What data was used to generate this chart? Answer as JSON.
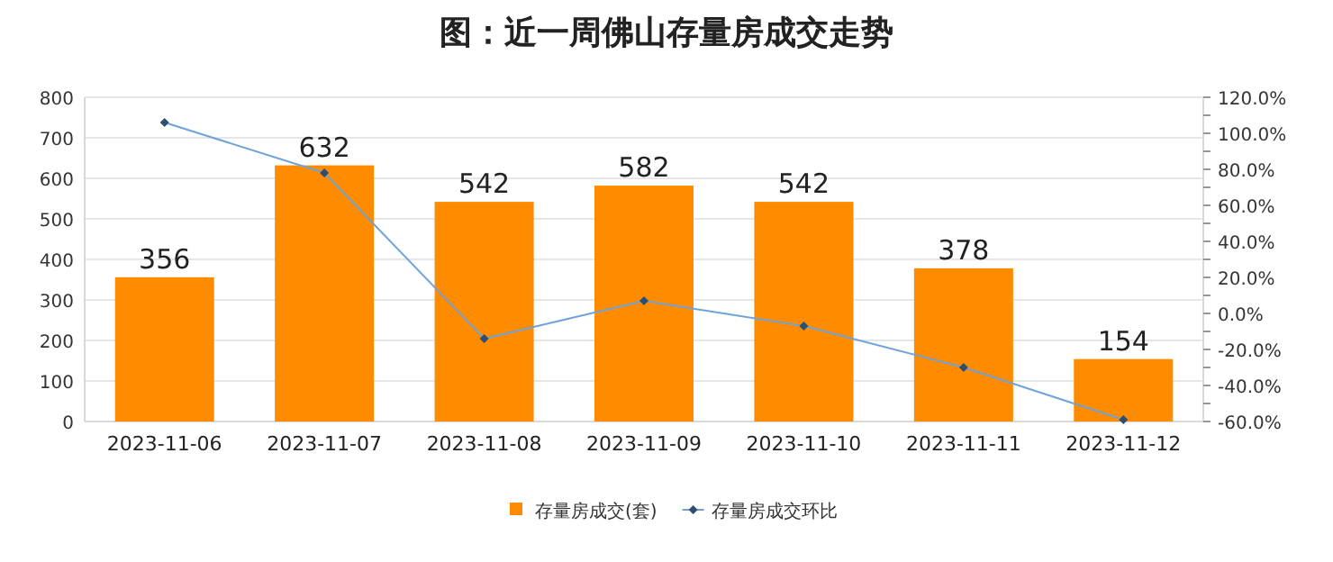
{
  "chart_data": {
    "type": "bar",
    "title": "图：近一周佛山存量房成交走势",
    "categories": [
      "2023-11-06",
      "2023-11-07",
      "2023-11-08",
      "2023-11-09",
      "2023-11-10",
      "2023-11-11",
      "2023-11-12"
    ],
    "series": [
      {
        "name": "存量房成交(套)",
        "color": "#ff8b00",
        "values": [
          356,
          632,
          542,
          582,
          542,
          378,
          154
        ],
        "value_labels": [
          "356",
          "632",
          "542",
          "582",
          "542",
          "378",
          "154"
        ]
      },
      {
        "name": "存量房成交环比",
        "type": "line",
        "axis": "y2",
        "color": "#6fa3d8",
        "marker": "diamond",
        "values": [
          106,
          78,
          -14,
          7,
          -7,
          -30,
          -59
        ]
      }
    ],
    "ylim": [
      0,
      800
    ],
    "yticks": [
      0,
      100,
      200,
      300,
      400,
      500,
      600,
      700,
      800
    ],
    "y2lim": [
      -60,
      120
    ],
    "y2ticks": [
      {
        "value": -60,
        "label": "-60.0%"
      },
      {
        "value": -50,
        "label": null
      },
      {
        "value": -40,
        "label": "-40.0%"
      },
      {
        "value": -30,
        "label": null
      },
      {
        "value": -20,
        "label": "-20.0%"
      },
      {
        "value": -10,
        "label": null
      },
      {
        "value": 0,
        "label": "0.0%"
      },
      {
        "value": 10,
        "label": null
      },
      {
        "value": 20,
        "label": "20.0%"
      },
      {
        "value": 30,
        "label": null
      },
      {
        "value": 40,
        "label": "40.0%"
      },
      {
        "value": 50,
        "label": null
      },
      {
        "value": 60,
        "label": "60.0%"
      },
      {
        "value": 70,
        "label": null
      },
      {
        "value": 80,
        "label": "80.0%"
      },
      {
        "value": 90,
        "label": null
      },
      {
        "value": 100,
        "label": "100.0%"
      },
      {
        "value": 110,
        "label": null
      },
      {
        "value": 120,
        "label": "120.0%"
      }
    ],
    "grid": "y",
    "legend": "bottom"
  }
}
